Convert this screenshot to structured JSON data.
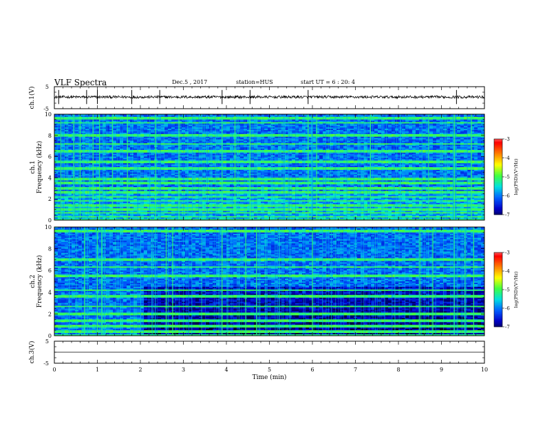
{
  "header": {
    "title": "VLF Spectra",
    "date": "Dec.5 , 2017",
    "station": "station=HUS",
    "start_ut": "start UT = 6 : 20: 4"
  },
  "colors": {
    "spectrogram_scale": [
      "#000022",
      "#0000c8",
      "#0060ff",
      "#00e0e0",
      "#40ff40",
      "#ffff00",
      "#ff8000",
      "#ff0000",
      "#ffffff"
    ]
  },
  "chart_data": [
    {
      "type": "line",
      "name": "ch1-waveform",
      "ylabel": "ch.1(V)",
      "ylim": [
        -5,
        5
      ],
      "yticks": [
        "5",
        "-5"
      ],
      "x_range": [
        0,
        10
      ],
      "baseline_v": 0.3,
      "noise_amplitude_v": 1.2,
      "spikes_min": [
        0.1,
        0.75,
        1.0,
        1.8,
        2.45,
        3.9,
        4.55,
        5.9,
        9.35
      ]
    },
    {
      "type": "heatmap",
      "name": "ch1-spectrogram",
      "ylabel": "ch.1\nFrequency (kHz)",
      "ylim": [
        0,
        10
      ],
      "yticks": [
        "0",
        "2",
        "4",
        "6",
        "8",
        "10"
      ],
      "x_range": [
        0,
        10
      ],
      "colorbar": {
        "label": "log(PSD)(V²/Hz)",
        "ticks": [
          "-3",
          "-4",
          "-5",
          "-6",
          "-7"
        ],
        "range": [
          -7,
          -3
        ]
      },
      "tone_bands_khz": [
        0.3,
        0.7,
        1.0,
        1.4,
        1.8,
        2.2,
        2.6,
        3.0,
        3.5,
        3.9,
        4.9,
        5.5,
        6.5,
        7.2,
        8.0,
        9.2,
        9.6
      ],
      "broadband_lines_min": [
        0.15,
        0.45,
        0.6,
        0.9,
        1.05,
        1.35,
        1.7,
        2.35,
        2.9,
        3.9,
        4.2,
        4.55,
        5.9,
        6.1,
        7.35,
        8.7,
        9.3,
        9.7
      ]
    },
    {
      "type": "heatmap",
      "name": "ch2-spectrogram",
      "ylabel": "ch.2\nFrequency (kHz)",
      "ylim": [
        0,
        10
      ],
      "yticks": [
        "0",
        "2",
        "4",
        "6",
        "8",
        "10"
      ],
      "x_range": [
        0,
        10
      ],
      "colorbar": {
        "label": "log(PSD)(V²/Hz)",
        "ticks": [
          "-3",
          "-4",
          "-5",
          "-6",
          "-7"
        ],
        "range": [
          -7,
          -3
        ]
      },
      "tone_bands_khz": [
        0.4,
        0.9,
        1.4,
        2.0,
        2.7,
        3.6,
        4.2,
        5.5,
        6.3,
        7.0,
        9.6
      ],
      "broadband_lines_min": [
        0.7,
        1.0,
        1.1,
        2.6,
        2.75,
        3.9,
        4.45,
        4.7,
        6.0,
        8.5,
        8.8,
        9.3,
        9.55,
        9.75
      ]
    },
    {
      "type": "line",
      "name": "ch3-waveform",
      "ylabel": "ch.3(V)",
      "ylim": [
        -5,
        5
      ],
      "yticks": [
        "5",
        "-5"
      ],
      "x_range": [
        0,
        10
      ],
      "baseline_v": 0,
      "xlabel": "Time (min)",
      "xticks": [
        "0",
        "1",
        "2",
        "3",
        "4",
        "5",
        "6",
        "7",
        "8",
        "9",
        "10"
      ]
    }
  ]
}
